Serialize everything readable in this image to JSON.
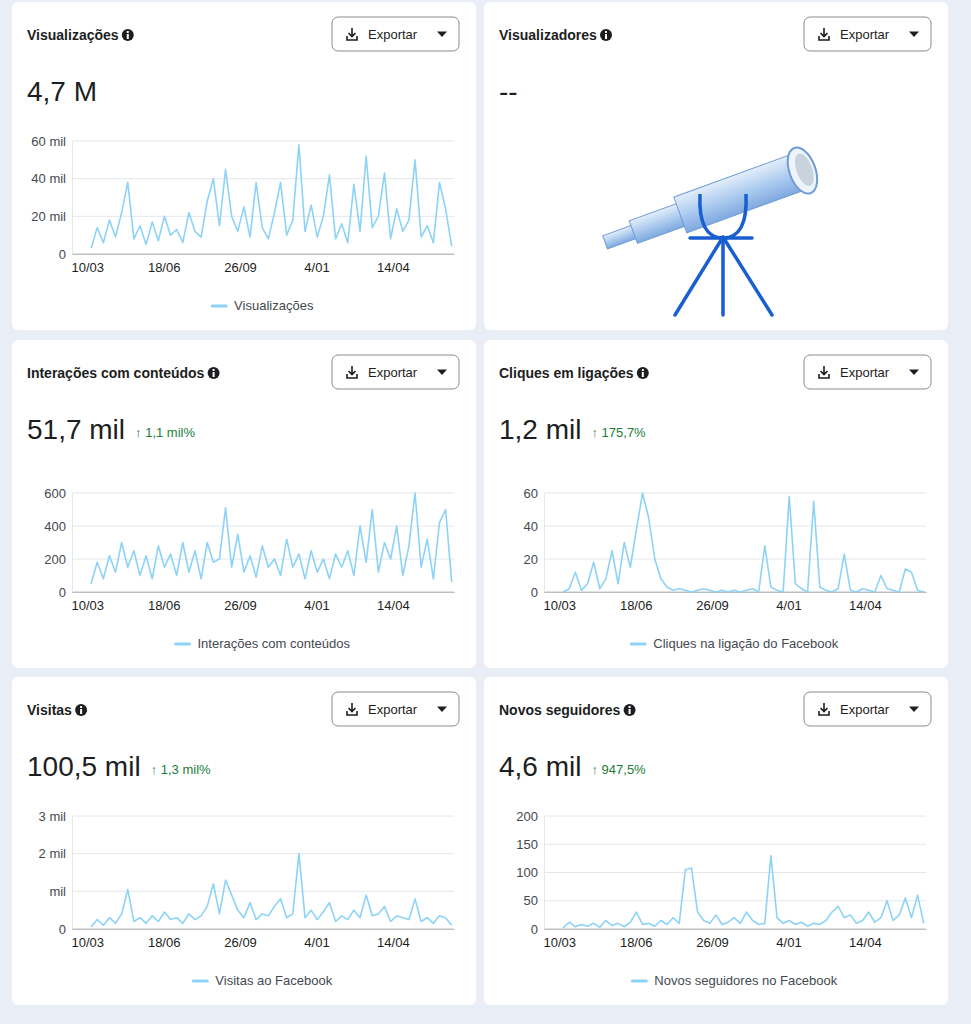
{
  "chart_data": [
    {
      "type": "line",
      "title": "Visualizações",
      "subtitle": "4,7 M",
      "x": [
        5,
        13,
        21,
        29,
        37,
        45,
        53,
        61,
        69,
        77,
        85,
        93,
        101,
        109,
        117,
        125,
        133,
        141,
        149,
        157,
        165,
        173,
        181,
        189,
        197,
        205,
        213,
        221,
        229,
        237,
        245,
        253,
        261,
        269,
        277,
        285,
        293,
        301,
        309,
        317,
        325,
        333,
        341,
        349,
        357,
        365,
        373,
        381,
        389,
        397,
        405,
        413,
        421,
        429,
        437,
        445,
        453,
        461,
        469,
        477
      ],
      "series": [
        {
          "name": "Visualizações",
          "color": "#8dd3f7",
          "values": [
            3000,
            14000,
            6000,
            18000,
            9000,
            22000,
            38000,
            8000,
            15000,
            5000,
            17000,
            7000,
            20000,
            10000,
            13000,
            6000,
            22000,
            12000,
            9000,
            28000,
            40000,
            15000,
            45000,
            20000,
            12000,
            25000,
            9000,
            38000,
            14000,
            8000,
            22000,
            38000,
            10000,
            18000,
            58000,
            12000,
            26000,
            9000,
            20000,
            42000,
            8000,
            16000,
            6000,
            37000,
            12000,
            52000,
            14000,
            20000,
            43000,
            8000,
            24000,
            12000,
            18000,
            50000,
            9000,
            15000,
            6000,
            38000,
            24000,
            4000
          ]
        }
      ],
      "xlim": [
        -20,
        480
      ],
      "xticks": [
        {
          "value": 0,
          "label": "10/03"
        },
        {
          "value": 100,
          "label": "18/06"
        },
        {
          "value": 200,
          "label": "26/09"
        },
        {
          "value": 300,
          "label": "4/01"
        },
        {
          "value": 400,
          "label": "14/04"
        }
      ],
      "ylim": [
        0,
        60000
      ],
      "yticks": [
        0,
        {
          "value": 20000,
          "label": "20 mil"
        },
        {
          "value": 40000,
          "label": "40 mil"
        },
        {
          "value": 60000,
          "label": "60 mil"
        }
      ],
      "grid": true,
      "legend": "bottom"
    },
    {
      "type": "line",
      "title": "Interações com conteúdos",
      "subtitle": "51,7 mil",
      "annotations": [
        {
          "text": "↑ 1,1 mil%"
        }
      ],
      "x": [
        5,
        13,
        21,
        29,
        37,
        45,
        53,
        61,
        69,
        77,
        85,
        93,
        101,
        109,
        117,
        125,
        133,
        141,
        149,
        157,
        165,
        173,
        181,
        189,
        197,
        205,
        213,
        221,
        229,
        237,
        245,
        253,
        261,
        269,
        277,
        285,
        293,
        301,
        309,
        317,
        325,
        333,
        341,
        349,
        357,
        365,
        373,
        381,
        389,
        397,
        405,
        413,
        421,
        429,
        437,
        445,
        453,
        461,
        469,
        477
      ],
      "series": [
        {
          "name": "Interações com conteúdos",
          "color": "#8dd3f7",
          "values": [
            50,
            180,
            80,
            220,
            120,
            300,
            150,
            250,
            100,
            220,
            80,
            280,
            150,
            230,
            100,
            300,
            120,
            250,
            80,
            300,
            180,
            200,
            510,
            150,
            350,
            120,
            220,
            90,
            280,
            150,
            200,
            100,
            320,
            150,
            230,
            80,
            250,
            120,
            200,
            80,
            230,
            150,
            250,
            100,
            400,
            180,
            500,
            120,
            300,
            200,
            400,
            100,
            280,
            600,
            150,
            320,
            80,
            420,
            500,
            60
          ]
        }
      ],
      "xlim": [
        -20,
        480
      ],
      "xticks": [
        {
          "value": 0,
          "label": "10/03"
        },
        {
          "value": 100,
          "label": "18/06"
        },
        {
          "value": 200,
          "label": "26/09"
        },
        {
          "value": 300,
          "label": "4/01"
        },
        {
          "value": 400,
          "label": "14/04"
        }
      ],
      "ylim": [
        0,
        600
      ],
      "yticks": [
        0,
        200,
        400,
        600
      ],
      "grid": true,
      "legend": "bottom"
    },
    {
      "type": "line",
      "title": "Cliques em ligações",
      "subtitle": "1,2 mil",
      "annotations": [
        {
          "text": "↑ 175,7%"
        }
      ],
      "x": [
        5,
        13,
        21,
        29,
        37,
        45,
        53,
        61,
        69,
        77,
        85,
        93,
        101,
        109,
        117,
        125,
        133,
        141,
        149,
        157,
        165,
        173,
        181,
        189,
        197,
        205,
        213,
        221,
        229,
        237,
        245,
        253,
        261,
        269,
        277,
        285,
        293,
        301,
        309,
        317,
        325,
        333,
        341,
        349,
        357,
        365,
        373,
        381,
        389,
        397,
        405,
        413,
        421,
        429,
        437,
        445,
        453,
        461,
        469,
        477
      ],
      "series": [
        {
          "name": "Cliques na ligação do Facebook",
          "color": "#8dd3f7",
          "values": [
            0,
            2,
            12,
            1,
            5,
            18,
            2,
            8,
            25,
            5,
            30,
            15,
            38,
            60,
            45,
            20,
            8,
            3,
            1,
            2,
            1,
            0,
            1,
            2,
            1,
            0,
            1,
            0,
            1,
            0,
            1,
            2,
            0,
            28,
            3,
            1,
            0,
            58,
            5,
            2,
            0,
            55,
            3,
            1,
            0,
            2,
            23,
            1,
            0,
            2,
            1,
            0,
            10,
            2,
            1,
            0,
            14,
            12,
            1,
            0
          ]
        }
      ],
      "xlim": [
        -20,
        480
      ],
      "xticks": [
        {
          "value": 0,
          "label": "10/03"
        },
        {
          "value": 100,
          "label": "18/06"
        },
        {
          "value": 200,
          "label": "26/09"
        },
        {
          "value": 300,
          "label": "4/01"
        },
        {
          "value": 400,
          "label": "14/04"
        }
      ],
      "ylim": [
        0,
        60
      ],
      "yticks": [
        0,
        20,
        40,
        60
      ],
      "grid": true,
      "legend": "bottom"
    },
    {
      "type": "line",
      "title": "Visitas",
      "subtitle": "100,5 mil",
      "annotations": [
        {
          "text": "↑ 1,3 mil%"
        }
      ],
      "x": [
        5,
        13,
        21,
        29,
        37,
        45,
        53,
        61,
        69,
        77,
        85,
        93,
        101,
        109,
        117,
        125,
        133,
        141,
        149,
        157,
        165,
        173,
        181,
        189,
        197,
        205,
        213,
        221,
        229,
        237,
        245,
        253,
        261,
        269,
        277,
        285,
        293,
        301,
        309,
        317,
        325,
        333,
        341,
        349,
        357,
        365,
        373,
        381,
        389,
        397,
        405,
        413,
        421,
        429,
        437,
        445,
        453,
        461,
        469,
        477
      ],
      "series": [
        {
          "name": "Visitas ao Facebook",
          "color": "#8dd3f7",
          "values": [
            50,
            250,
            100,
            300,
            150,
            400,
            1050,
            200,
            300,
            150,
            350,
            200,
            450,
            250,
            300,
            150,
            400,
            250,
            350,
            600,
            1200,
            400,
            1300,
            900,
            500,
            300,
            700,
            250,
            400,
            350,
            600,
            800,
            300,
            400,
            2000,
            300,
            500,
            250,
            450,
            700,
            200,
            350,
            250,
            500,
            300,
            900,
            350,
            400,
            600,
            200,
            350,
            300,
            250,
            800,
            200,
            300,
            150,
            350,
            300,
            100
          ]
        }
      ],
      "xlim": [
        -20,
        480
      ],
      "xticks": [
        {
          "value": 0,
          "label": "10/03"
        },
        {
          "value": 100,
          "label": "18/06"
        },
        {
          "value": 200,
          "label": "26/09"
        },
        {
          "value": 300,
          "label": "4/01"
        },
        {
          "value": 400,
          "label": "14/04"
        }
      ],
      "ylim": [
        0,
        3000
      ],
      "yticks": [
        0,
        {
          "value": 1000,
          "label": "mil"
        },
        {
          "value": 2000,
          "label": "2 mil"
        },
        {
          "value": 3000,
          "label": "3 mil"
        }
      ],
      "grid": true,
      "legend": "bottom"
    },
    {
      "type": "line",
      "title": "Novos seguidores",
      "subtitle": "4,6 mil",
      "annotations": [
        {
          "text": "↑ 947,5%"
        }
      ],
      "x": [
        5,
        13,
        21,
        29,
        37,
        45,
        53,
        61,
        69,
        77,
        85,
        93,
        101,
        109,
        117,
        125,
        133,
        141,
        149,
        157,
        165,
        173,
        181,
        189,
        197,
        205,
        213,
        221,
        229,
        237,
        245,
        253,
        261,
        269,
        277,
        285,
        293,
        301,
        309,
        317,
        325,
        333,
        341,
        349,
        357,
        365,
        373,
        381,
        389,
        397,
        405,
        413,
        421,
        429,
        437,
        445,
        453,
        461,
        469,
        477
      ],
      "series": [
        {
          "name": "Novos seguidores no Facebook",
          "color": "#8dd3f7",
          "values": [
            2,
            12,
            4,
            8,
            5,
            10,
            3,
            15,
            6,
            10,
            4,
            12,
            30,
            8,
            10,
            5,
            15,
            8,
            20,
            10,
            105,
            108,
            30,
            15,
            10,
            25,
            8,
            12,
            20,
            10,
            30,
            15,
            8,
            10,
            130,
            20,
            10,
            15,
            8,
            12,
            5,
            10,
            8,
            15,
            30,
            40,
            20,
            25,
            10,
            15,
            30,
            12,
            20,
            50,
            15,
            25,
            55,
            20,
            60,
            10
          ]
        }
      ],
      "xlim": [
        -20,
        480
      ],
      "xticks": [
        {
          "value": 0,
          "label": "10/03"
        },
        {
          "value": 100,
          "label": "18/06"
        },
        {
          "value": 200,
          "label": "26/09"
        },
        {
          "value": 300,
          "label": "4/01"
        },
        {
          "value": 400,
          "label": "14/04"
        }
      ],
      "ylim": [
        0,
        200
      ],
      "yticks": [
        0,
        50,
        100,
        150,
        200
      ],
      "grid": true,
      "legend": "bottom"
    }
  ],
  "page": {
    "export_label": "Exportar",
    "empty_panel": {
      "title": "Visualizadores",
      "value": "--"
    }
  }
}
